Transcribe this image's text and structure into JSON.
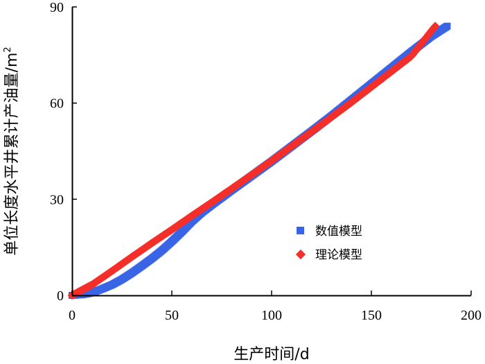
{
  "chart_data": {
    "type": "scatter",
    "xlabel": "生产时间/d",
    "ylabel": "单位长度水平井累计产油量/m",
    "ylabel_superscript": "2",
    "xlim": [
      0,
      200
    ],
    "ylim": [
      0,
      90
    ],
    "xticks": [
      "0",
      "50",
      "100",
      "150",
      "200"
    ],
    "yticks": [
      "0",
      "30",
      "60",
      "90"
    ],
    "grid": false,
    "legend_position": "lower-right",
    "series": [
      {
        "name": "数值模型",
        "color": "#3A64E6",
        "marker": "square",
        "x": [
          0,
          5,
          10,
          15,
          20,
          25,
          30,
          35,
          40,
          45,
          50,
          55,
          60,
          65,
          70,
          80,
          90,
          100,
          110,
          120,
          130,
          140,
          150,
          160,
          170,
          180,
          188
        ],
        "y": [
          0,
          0.2,
          0.8,
          2.0,
          3.3,
          5.0,
          7.0,
          9.2,
          11.5,
          14.0,
          16.8,
          19.8,
          23.0,
          25.8,
          28.2,
          32.8,
          37.3,
          41.8,
          46.5,
          51.2,
          56.0,
          61.0,
          66.0,
          71.0,
          76.0,
          80.8,
          84.0
        ]
      },
      {
        "name": "理论模型",
        "color": "#F42F2A",
        "marker": "diamond",
        "x": [
          0,
          10,
          20,
          30,
          40,
          50,
          60,
          70,
          80,
          90,
          100,
          110,
          120,
          130,
          140,
          150,
          160,
          170,
          182
        ],
        "y": [
          0,
          3.3,
          7.6,
          12.0,
          16.3,
          20.5,
          24.8,
          29.0,
          33.3,
          37.6,
          42.0,
          46.5,
          51.0,
          55.6,
          60.2,
          65.0,
          69.8,
          74.6,
          84.0
        ]
      }
    ]
  }
}
